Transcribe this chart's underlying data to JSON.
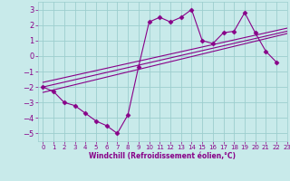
{
  "xlabel": "Windchill (Refroidissement éolien,°C)",
  "xlim": [
    -0.5,
    23
  ],
  "ylim": [
    -5.5,
    3.5
  ],
  "yticks": [
    3,
    2,
    1,
    0,
    -1,
    -2,
    -3,
    -4,
    -5
  ],
  "xticks": [
    0,
    1,
    2,
    3,
    4,
    5,
    6,
    7,
    8,
    9,
    10,
    11,
    12,
    13,
    14,
    15,
    16,
    17,
    18,
    19,
    20,
    21,
    22,
    23
  ],
  "bg_color": "#c8eaea",
  "grid_color": "#9ccece",
  "line_color": "#880088",
  "line_data_x": [
    0,
    1,
    2,
    3,
    4,
    5,
    6,
    7,
    8,
    9,
    10,
    11,
    12,
    13,
    14,
    15,
    16,
    17,
    18,
    19,
    20,
    21,
    22
  ],
  "line_data_y": [
    -2.0,
    -2.3,
    -3.0,
    -3.2,
    -3.7,
    -4.2,
    -4.5,
    -5.0,
    -3.8,
    -0.7,
    2.2,
    2.5,
    2.2,
    2.5,
    3.0,
    1.0,
    0.8,
    1.5,
    1.6,
    2.8,
    1.5,
    0.3,
    -0.4
  ],
  "reg_lines": [
    {
      "x0": 0,
      "y0": -2.35,
      "x1": 23,
      "y1": 1.45
    },
    {
      "x0": 0,
      "y0": -2.0,
      "x1": 23,
      "y1": 1.6
    },
    {
      "x0": 0,
      "y0": -1.7,
      "x1": 23,
      "y1": 1.8
    }
  ]
}
